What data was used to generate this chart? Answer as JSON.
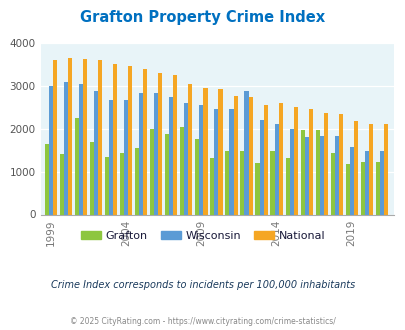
{
  "title": "Grafton Property Crime Index",
  "title_color": "#0070C0",
  "years": [
    1999,
    2000,
    2001,
    2002,
    2003,
    2004,
    2005,
    2006,
    2007,
    2008,
    2009,
    2010,
    2011,
    2012,
    2013,
    2014,
    2015,
    2016,
    2017,
    2018,
    2019,
    2020,
    2021
  ],
  "grafton": [
    1650,
    1400,
    2250,
    1700,
    1330,
    1440,
    1540,
    1990,
    1870,
    2040,
    1770,
    1310,
    1470,
    1490,
    1200,
    1480,
    1310,
    1970,
    1980,
    1440,
    1170,
    1220,
    1220
  ],
  "wisconsin": [
    3000,
    3100,
    3040,
    2890,
    2660,
    2660,
    2830,
    2830,
    2750,
    2600,
    2550,
    2450,
    2450,
    2890,
    2200,
    2100,
    2000,
    1810,
    1820,
    1820,
    1580,
    1480,
    1480
  ],
  "national": [
    3600,
    3650,
    3630,
    3590,
    3510,
    3450,
    3380,
    3300,
    3250,
    3050,
    2960,
    2920,
    2760,
    2750,
    2560,
    2600,
    2510,
    2470,
    2360,
    2350,
    2180,
    2100,
    2100
  ],
  "grafton_color": "#8DC63F",
  "wisconsin_color": "#5B9BD5",
  "national_color": "#F5A623",
  "plot_bg": "#E8F4F8",
  "ylim": [
    0,
    4000
  ],
  "yticks": [
    0,
    1000,
    2000,
    3000,
    4000
  ],
  "xlabel_tick_years": [
    1999,
    2004,
    2009,
    2014,
    2019
  ],
  "note": "Crime Index corresponds to incidents per 100,000 inhabitants",
  "footer": "© 2025 CityRating.com - https://www.cityrating.com/crime-statistics/",
  "note_color": "#1a3a5c",
  "footer_color": "#888888",
  "legend_text_color": "#1a1a3a",
  "bar_width": 0.27
}
